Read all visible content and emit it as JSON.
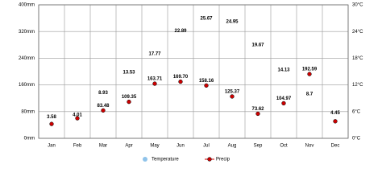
{
  "chart_data": {
    "type": "line",
    "categories": [
      "Jan",
      "Feb",
      "Mar",
      "Apr",
      "May",
      "Jun",
      "Jul",
      "Aug",
      "Sep",
      "Oct",
      "Nov",
      "Dec"
    ],
    "series": [
      {
        "name": "Temperature",
        "color": "#8fc3ea",
        "axis": "y2",
        "values": [
          3.58,
          4.01,
          8.93,
          13.53,
          17.77,
          22.89,
          25.67,
          24.95,
          19.67,
          14.13,
          8.7,
          4.45
        ]
      },
      {
        "name": "Precip",
        "color": "#cc0000",
        "values": [
          43,
          60,
          83.48,
          109.35,
          163.71,
          169.7,
          158.16,
          125.37,
          73.62,
          104.97,
          192.59,
          51
        ],
        "value_labels": [
          null,
          null,
          "83.48",
          "109.35",
          "163.71",
          "169.70",
          "158.16",
          "125.37",
          "73.62",
          "104.97",
          "192.59",
          null
        ]
      }
    ],
    "ylim": [
      0,
      400
    ],
    "yticks": [
      {
        "value": 0,
        "label": "0mm"
      },
      {
        "value": 80,
        "label": "80mm"
      },
      {
        "value": 160,
        "label": "160mm"
      },
      {
        "value": 240,
        "label": "240mm"
      },
      {
        "value": 320,
        "label": "320mm"
      },
      {
        "value": 400,
        "label": "400mm"
      }
    ],
    "y2lim": [
      0,
      30
    ],
    "y2ticks": [
      {
        "value": 0,
        "label": "0°C"
      },
      {
        "value": 6,
        "label": "6°C"
      },
      {
        "value": 12,
        "label": "12°C"
      },
      {
        "value": 18,
        "label": "18°C"
      },
      {
        "value": 24,
        "label": "24°C"
      },
      {
        "value": 30,
        "label": "30°C"
      }
    ],
    "grid": true
  }
}
